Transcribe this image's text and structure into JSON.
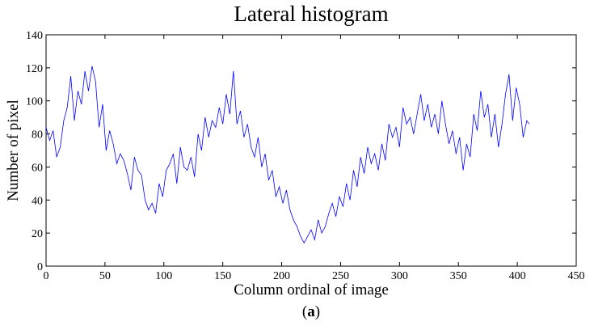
{
  "chart_data": {
    "type": "line",
    "title": "Lateral histogram",
    "xlabel": "Column ordinal of image",
    "ylabel": "Number of pixel",
    "xlim": [
      0,
      450
    ],
    "ylim": [
      0,
      140
    ],
    "xticks": [
      "0",
      "50",
      "100",
      "150",
      "200",
      "250",
      "300",
      "350",
      "400",
      "450"
    ],
    "yticks": [
      "0",
      "20",
      "40",
      "60",
      "80",
      "100",
      "120",
      "140"
    ],
    "grid": false,
    "line_color": "#0000ff",
    "series": [
      {
        "x": [
          0,
          3,
          6,
          9,
          12,
          15,
          18,
          21,
          24,
          27,
          30,
          33,
          36,
          39,
          42,
          45,
          48,
          51,
          54,
          57,
          60,
          63,
          66,
          69,
          72,
          75,
          78,
          81,
          84,
          87,
          90,
          93,
          96,
          99,
          102,
          105,
          108,
          111,
          114,
          117,
          120,
          123,
          126,
          129,
          132,
          135,
          138,
          141,
          144,
          147,
          150,
          153,
          156,
          159,
          162,
          165,
          168,
          171,
          174,
          177,
          180,
          183,
          186,
          189,
          192,
          195,
          198,
          201,
          204,
          207,
          210,
          213,
          216,
          219,
          222,
          225,
          228,
          231,
          234,
          237,
          240,
          243,
          246,
          249,
          252,
          255,
          258,
          261,
          264,
          267,
          270,
          273,
          276,
          279,
          282,
          285,
          288,
          291,
          294,
          297,
          300,
          303,
          306,
          309,
          312,
          315,
          318,
          321,
          324,
          327,
          330,
          333,
          336,
          339,
          342,
          345,
          348,
          351,
          354,
          357,
          360,
          363,
          366,
          369,
          372,
          375,
          378,
          381,
          384,
          387,
          390,
          393,
          396,
          399,
          402,
          405,
          408,
          410
        ],
        "y": [
          84,
          76,
          82,
          66,
          72,
          88,
          96,
          115,
          88,
          106,
          98,
          118,
          106,
          121,
          112,
          84,
          98,
          70,
          82,
          74,
          62,
          68,
          64,
          56,
          46,
          66,
          58,
          55,
          40,
          34,
          38,
          32,
          50,
          42,
          58,
          62,
          68,
          50,
          72,
          60,
          58,
          66,
          54,
          80,
          70,
          90,
          78,
          88,
          84,
          96,
          86,
          104,
          92,
          118,
          86,
          94,
          78,
          86,
          72,
          66,
          78,
          60,
          68,
          52,
          58,
          42,
          48,
          38,
          46,
          34,
          28,
          24,
          18,
          14,
          18,
          22,
          16,
          28,
          20,
          24,
          32,
          38,
          30,
          42,
          36,
          50,
          40,
          58,
          48,
          66,
          56,
          72,
          62,
          68,
          58,
          74,
          64,
          86,
          78,
          84,
          72,
          96,
          86,
          90,
          80,
          92,
          104,
          88,
          98,
          84,
          92,
          80,
          100,
          86,
          74,
          82,
          68,
          78,
          58,
          74,
          66,
          92,
          82,
          106,
          90,
          98,
          78,
          92,
          72,
          86,
          104,
          116,
          88,
          108,
          98,
          78,
          88,
          86
        ]
      }
    ]
  },
  "caption": {
    "paren_left": "(",
    "letter": "a",
    "paren_right": ")"
  }
}
